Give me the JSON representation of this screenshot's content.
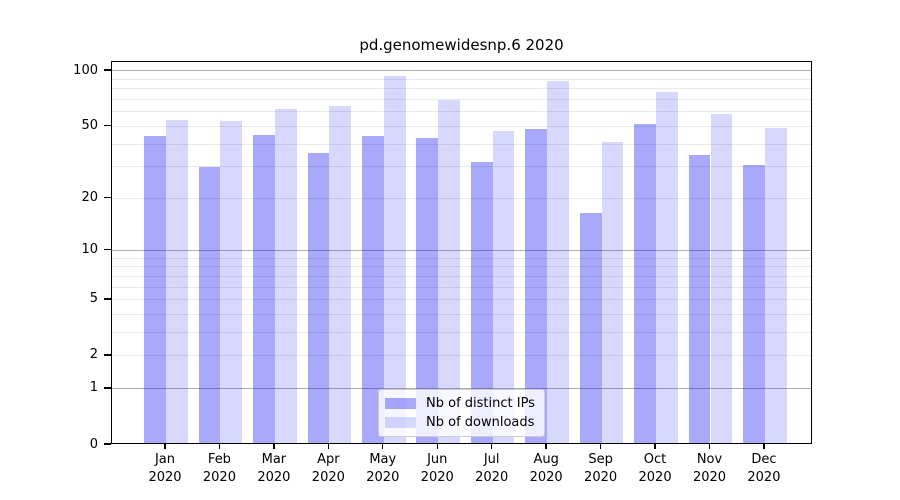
{
  "title": "pd.genomewidesnp.6 2020",
  "chart_data": {
    "type": "bar",
    "title": "pd.genomewidesnp.6 2020",
    "scale": "log1p",
    "ylim": [
      0,
      112
    ],
    "yticks": [
      0,
      1,
      2,
      5,
      10,
      20,
      50,
      100
    ],
    "major_gridlines": [
      1,
      10,
      100
    ],
    "minor_gridlines": [
      2,
      3,
      4,
      5,
      6,
      7,
      8,
      9,
      20,
      30,
      40,
      50,
      60,
      70,
      80,
      90
    ],
    "grid": true,
    "categories": [
      "Jan",
      "Feb",
      "Mar",
      "Apr",
      "May",
      "Jun",
      "Jul",
      "Aug",
      "Sep",
      "Oct",
      "Nov",
      "Dec"
    ],
    "category_year": "2020",
    "series": [
      {
        "name": "Nb of distinct IPs",
        "color": "rgba(10,10,245,0.35)",
        "values": [
          43,
          29,
          44,
          35,
          43,
          42,
          31,
          47,
          16,
          50,
          34,
          30
        ]
      },
      {
        "name": "Nb of downloads",
        "color": "rgba(10,10,245,0.16)",
        "values": [
          53,
          52,
          61,
          63,
          92,
          68,
          46,
          86,
          40,
          75,
          57,
          48
        ]
      }
    ],
    "legend_position": "lower center"
  },
  "colors": {
    "background": "#ffffff",
    "axis": "#000000",
    "major_grid": "#b0b0b0",
    "minor_grid": "#e9e9e9",
    "text": "#000000"
  }
}
